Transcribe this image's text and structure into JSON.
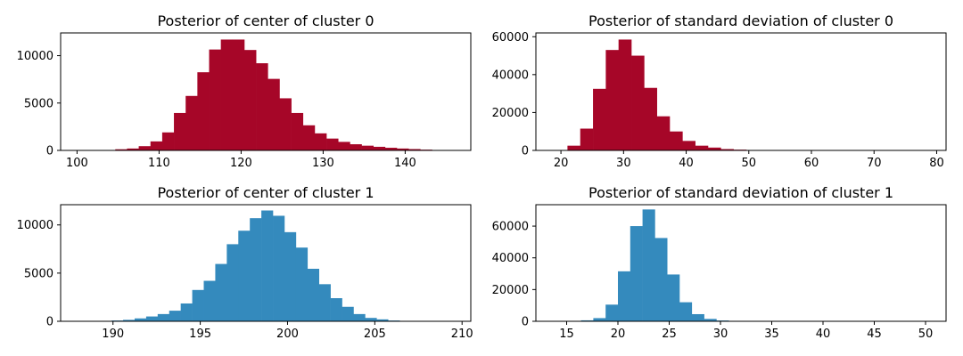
{
  "chart_data": [
    {
      "type": "bar",
      "title": "Posterior of center of cluster 0",
      "xlabel": "",
      "ylabel": "",
      "xlim": [
        98,
        148
      ],
      "ylim": [
        0,
        12400
      ],
      "xticks": [
        100,
        110,
        120,
        130,
        140
      ],
      "yticks": [
        0,
        5000,
        10000
      ],
      "bin_start": 101.8,
      "bin_width": 1.43,
      "values": [
        10,
        30,
        120,
        200,
        450,
        950,
        1900,
        3950,
        5750,
        8250,
        10650,
        11700,
        11700,
        10600,
        9200,
        7550,
        5500,
        3950,
        2650,
        1800,
        1250,
        900,
        650,
        500,
        380,
        280,
        200,
        140,
        80,
        40,
        20,
        10
      ],
      "color": "#a60628",
      "grid": false
    },
    {
      "type": "bar",
      "title": "Posterior of standard deviation of cluster 0",
      "xlabel": "",
      "ylabel": "",
      "xlim": [
        16.0,
        81.5
      ],
      "ylim": [
        0,
        62000
      ],
      "xticks": [
        20,
        30,
        40,
        50,
        60,
        70,
        80
      ],
      "yticks": [
        0,
        20000,
        40000,
        60000
      ],
      "bin_start": 19.0,
      "bin_width": 2.04,
      "values": [
        200,
        2500,
        11500,
        32500,
        53000,
        58500,
        50000,
        33000,
        18000,
        10000,
        5000,
        2500,
        1500,
        700,
        400,
        200,
        100,
        60,
        40,
        25,
        15,
        10,
        8,
        6,
        5,
        4,
        3,
        2,
        2,
        1
      ],
      "color": "#a60628",
      "grid": false
    },
    {
      "type": "bar",
      "title": "Posterior of center of cluster 1",
      "xlabel": "",
      "ylabel": "",
      "xlim": [
        187,
        210.5
      ],
      "ylim": [
        0,
        12100
      ],
      "xticks": [
        190,
        195,
        200,
        205,
        210
      ],
      "yticks": [
        0,
        5000,
        10000
      ],
      "bin_start": 188.6,
      "bin_width": 0.66,
      "values": [
        10,
        30,
        80,
        150,
        300,
        500,
        750,
        1100,
        1850,
        3250,
        4200,
        5950,
        8000,
        9400,
        10700,
        11500,
        10950,
        9250,
        7650,
        5450,
        3850,
        2400,
        1500,
        750,
        350,
        200,
        80,
        30,
        10,
        5
      ],
      "color": "#348abd",
      "grid": false
    },
    {
      "type": "bar",
      "title": "Posterior of standard deviation of cluster 1",
      "xlabel": "",
      "ylabel": "",
      "xlim": [
        12.0,
        52.0
      ],
      "ylim": [
        0,
        73500
      ],
      "xticks": [
        15,
        20,
        25,
        30,
        35,
        40,
        45,
        50
      ],
      "yticks": [
        0,
        20000,
        40000,
        60000
      ],
      "bin_start": 14.0,
      "bin_width": 1.2,
      "values": [
        50,
        200,
        600,
        2000,
        10500,
        31500,
        60000,
        70500,
        52500,
        29500,
        12000,
        4500,
        1500,
        500,
        200,
        100,
        60,
        40,
        25,
        15,
        10,
        8,
        6,
        5,
        4,
        3,
        2,
        2,
        1,
        1
      ],
      "color": "#348abd",
      "grid": false
    }
  ]
}
